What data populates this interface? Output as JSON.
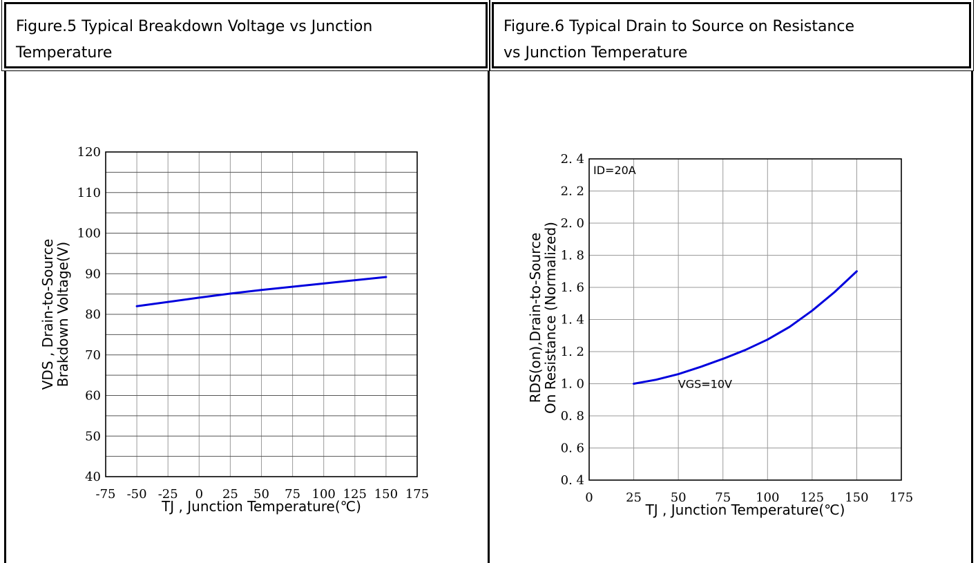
{
  "panels": [
    {
      "title": "Figure.5 Typical Breakdown Voltage vs Junction\nTemperature"
    },
    {
      "title": "Figure.6 Typical Drain to Source on Resistance\nvs Junction Temperature"
    }
  ],
  "chart_data": [
    {
      "type": "line",
      "title": "",
      "xlabel": "TJ , Junction Temperature(℃)",
      "ylabel_lines": [
        "VDS , Drain-to-Source",
        "Brakdown Voltage(V)"
      ],
      "xlim": [
        -75,
        175
      ],
      "ylim": [
        40,
        120
      ],
      "xticks": [
        -75,
        -50,
        -25,
        0,
        25,
        50,
        75,
        100,
        125,
        150,
        175
      ],
      "yticks": [
        40,
        50,
        60,
        70,
        80,
        90,
        100,
        110,
        120
      ],
      "ygrid_minor": 5,
      "grid": true,
      "series_color": "#0000dd",
      "series": [
        {
          "x": [
            -50,
            0,
            25,
            50,
            100,
            150
          ],
          "y": [
            82,
            84.1,
            85.1,
            86,
            87.6,
            89.2
          ]
        }
      ],
      "annotations": []
    },
    {
      "type": "line",
      "title": "",
      "xlabel": "TJ , Junction Temperature(℃)",
      "ylabel_lines": [
        "RDS(on),Drain-to-Source",
        "On Resistance (Normalized)"
      ],
      "xlim": [
        0,
        175
      ],
      "ylim": [
        0.4,
        2.4
      ],
      "xticks": [
        0,
        25,
        50,
        75,
        100,
        125,
        150,
        175
      ],
      "yticks": [
        0.4,
        0.6,
        0.8,
        1.0,
        1.2,
        1.4,
        1.6,
        1.8,
        2.0,
        2.2,
        2.4
      ],
      "ytick_labels": [
        "0. 4",
        "0. 6",
        "0. 8",
        "1. 0",
        "1. 2",
        "1. 4",
        "1. 6",
        "1. 8",
        "2. 0",
        "2. 2",
        "2. 4"
      ],
      "ygrid_minor": null,
      "grid": true,
      "series_color": "#0000dd",
      "series": [
        {
          "x": [
            25,
            37.5,
            50,
            62.5,
            75,
            87.5,
            100,
            112.5,
            125,
            137.5,
            150
          ],
          "y": [
            1.0,
            1.025,
            1.06,
            1.105,
            1.155,
            1.21,
            1.275,
            1.355,
            1.455,
            1.57,
            1.7
          ]
        }
      ],
      "annotations": [
        {
          "text": "ID=20A",
          "x": 0,
          "y": 2.4,
          "anchor": "top-left"
        },
        {
          "text": "VGS=10V",
          "x": 65,
          "y": 1.0,
          "anchor": "center"
        }
      ]
    }
  ]
}
